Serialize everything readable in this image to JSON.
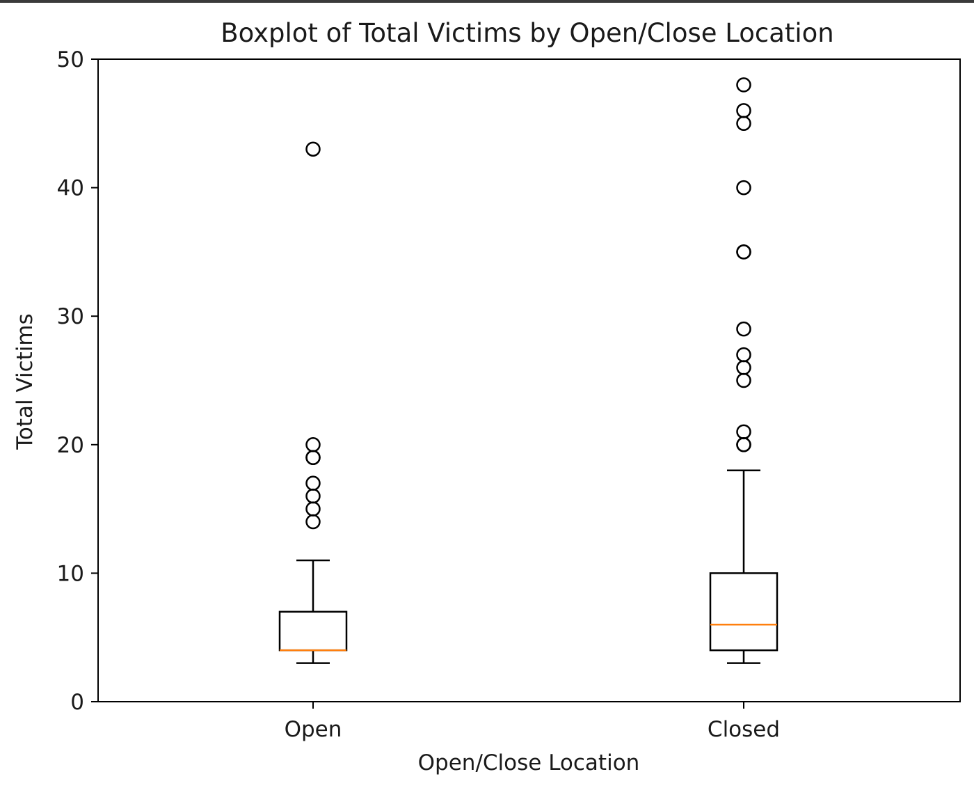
{
  "chart_data": {
    "type": "boxplot",
    "title": "Boxplot of Total Victims by Open/Close Location",
    "xlabel": "Open/Close Location",
    "ylabel": "Total Victims",
    "ylim": [
      0,
      50
    ],
    "yticks": [
      "0",
      "10",
      "20",
      "30",
      "40",
      "50"
    ],
    "grid": false,
    "categories": [
      "Open",
      "Closed"
    ],
    "boxes": [
      {
        "category": "Open",
        "whisker_low": 3,
        "q1": 4,
        "median": 4,
        "q3": 7,
        "whisker_high": 11,
        "outliers": [
          14,
          15,
          16,
          17,
          19,
          19,
          20,
          43
        ]
      },
      {
        "category": "Closed",
        "whisker_low": 3,
        "q1": 4,
        "median": 6,
        "q3": 10,
        "whisker_high": 18,
        "outliers": [
          20,
          20,
          21,
          25,
          26,
          27,
          29,
          35,
          35,
          40,
          45,
          46,
          48
        ]
      }
    ],
    "colors": {
      "box": "#000000",
      "median": "#ff7f0e",
      "outlier": "#000000"
    }
  }
}
